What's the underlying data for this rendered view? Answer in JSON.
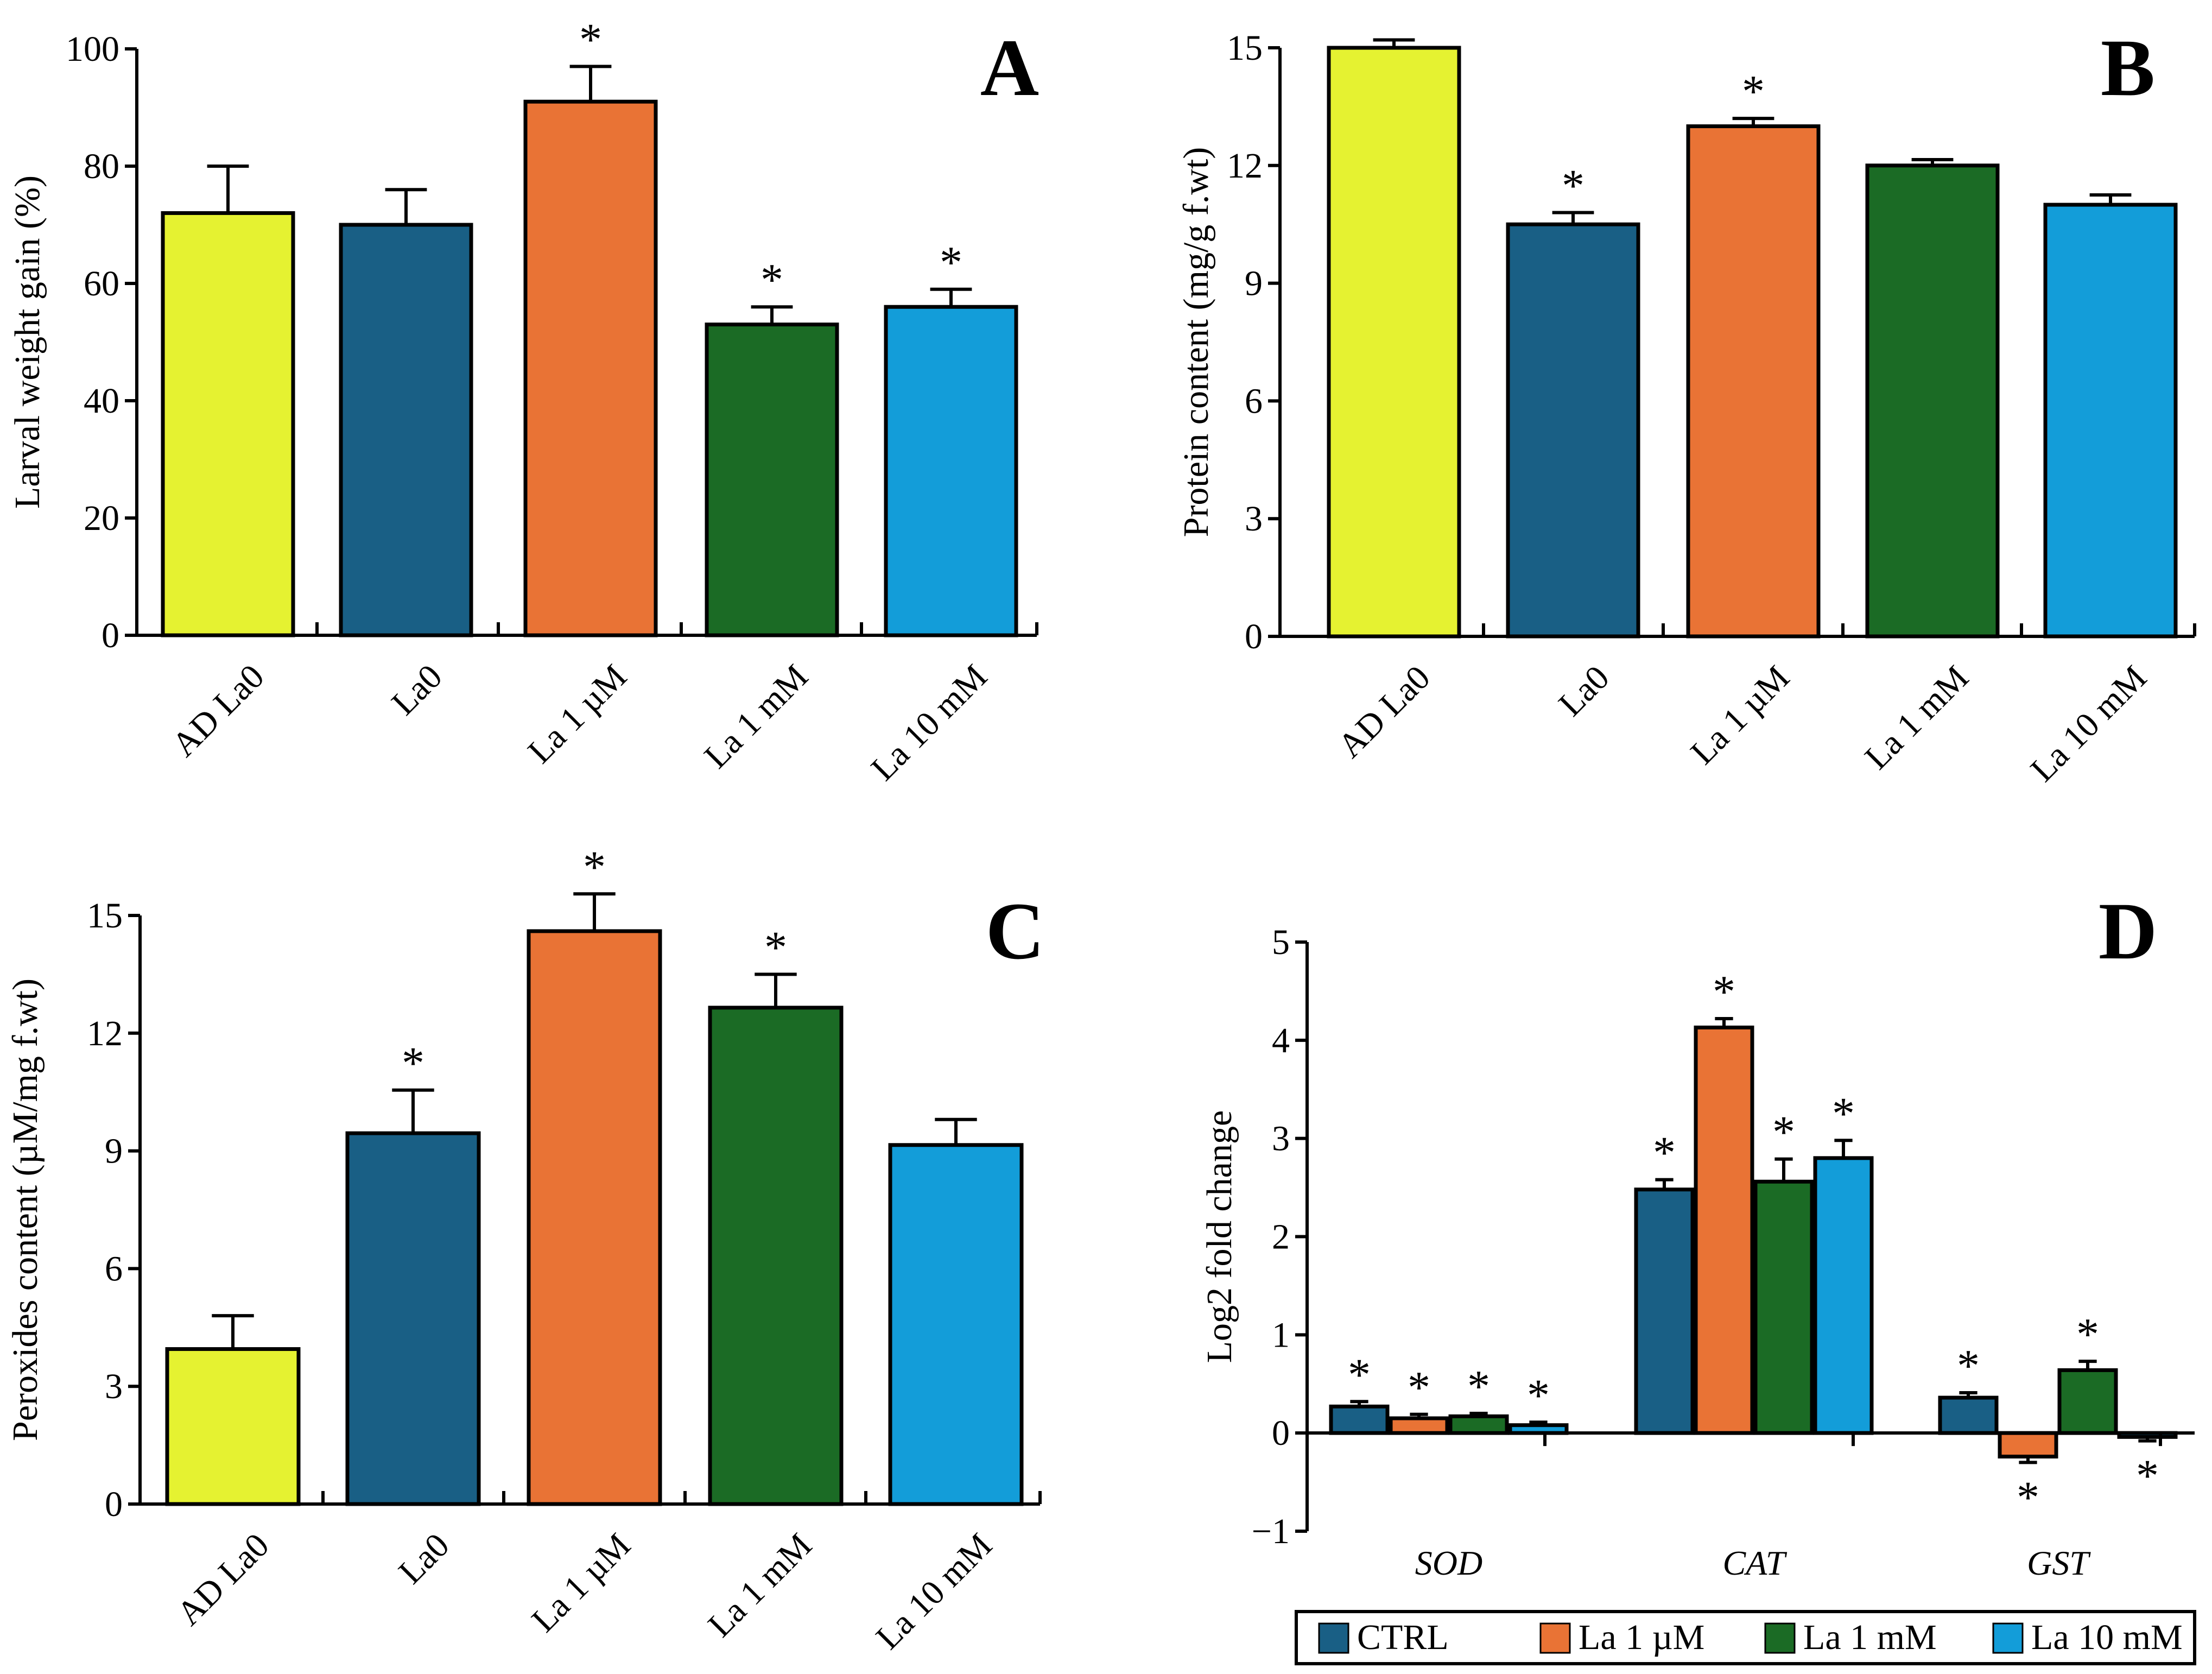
{
  "chart_data": [
    {
      "type": "bar",
      "panel": "A",
      "title": "",
      "xlabel": "",
      "ylabel": "Larval weight gain (%)",
      "ylim": [
        0,
        100
      ],
      "yticks": [
        "0",
        "20",
        "40",
        "60",
        "80",
        "100"
      ],
      "categories": [
        "AD La0",
        "La0",
        "La 1 µM",
        "La 1 mM",
        "La 10 mM"
      ],
      "values": [
        72,
        70,
        91,
        53,
        56
      ],
      "errors": [
        8,
        6,
        6,
        3,
        3
      ],
      "significant": [
        false,
        false,
        true,
        true,
        true
      ],
      "colors": [
        "#e5f231",
        "#195f85",
        "#e97335",
        "#1b6b25",
        "#139dd9"
      ]
    },
    {
      "type": "bar",
      "panel": "B",
      "title": "",
      "xlabel": "",
      "ylabel": "Protein content  (mg/g f.wt)",
      "ylim": [
        0,
        15
      ],
      "yticks": [
        "0",
        "3",
        "6",
        "9",
        "12",
        "15"
      ],
      "categories": [
        "AD La0",
        "La0",
        "La 1 µM",
        "La 1 mM",
        "La 10 mM"
      ],
      "values": [
        15.0,
        10.5,
        13.0,
        12.0,
        11.0
      ],
      "errors": [
        0.2,
        0.3,
        0.2,
        0.15,
        0.25
      ],
      "significant": [
        false,
        true,
        true,
        false,
        false
      ],
      "colors": [
        "#e5f231",
        "#195f85",
        "#e97335",
        "#1b6b25",
        "#139dd9"
      ]
    },
    {
      "type": "bar",
      "panel": "C",
      "title": "",
      "xlabel": "",
      "ylabel": "Peroxides content (µM/mg f.wt)",
      "ylim": [
        0,
        15
      ],
      "yticks": [
        "0",
        "3",
        "6",
        "9",
        "12",
        "15"
      ],
      "categories": [
        "AD La0",
        "La0",
        "La 1 µM",
        "La 1 mM",
        "La 10 mM"
      ],
      "values": [
        3.95,
        9.45,
        14.6,
        12.65,
        9.15
      ],
      "errors": [
        0.85,
        1.1,
        0.95,
        0.85,
        0.65
      ],
      "significant": [
        false,
        true,
        true,
        true,
        false
      ],
      "colors": [
        "#e5f231",
        "#195f85",
        "#e97335",
        "#1b6b25",
        "#139dd9"
      ]
    },
    {
      "type": "bar",
      "panel": "D",
      "title": "",
      "xlabel": "",
      "ylabel": "Log2 fold change",
      "ylim": [
        -1,
        5
      ],
      "yticks": [
        "−1",
        "0",
        "1",
        "2",
        "3",
        "4",
        "5"
      ],
      "categories": [
        "SOD",
        "CAT",
        "GST"
      ],
      "series": [
        {
          "name": "CTRL",
          "values": [
            0.27,
            2.48,
            0.36
          ],
          "errors": [
            0.05,
            0.1,
            0.05
          ],
          "significant": [
            true,
            true,
            true
          ],
          "color": "#195f85"
        },
        {
          "name": "La 1 µM",
          "values": [
            0.15,
            4.13,
            -0.24
          ],
          "errors": [
            0.04,
            0.09,
            0.06
          ],
          "significant": [
            true,
            true,
            true
          ],
          "color": "#e97335"
        },
        {
          "name": "La 1 mM",
          "values": [
            0.17,
            2.56,
            0.64
          ],
          "errors": [
            0.03,
            0.23,
            0.09
          ],
          "significant": [
            true,
            true,
            true
          ],
          "color": "#1b6b25"
        },
        {
          "name": "La 10 mM",
          "values": [
            0.08,
            2.8,
            -0.04
          ],
          "errors": [
            0.03,
            0.18,
            0.04
          ],
          "significant": [
            true,
            true,
            true
          ],
          "color": "#139dd9"
        }
      ],
      "legend": [
        "CTRL",
        "La 1 µM",
        "La 1 mM",
        "La 10 mM"
      ],
      "legend_position": "bottom"
    }
  ]
}
